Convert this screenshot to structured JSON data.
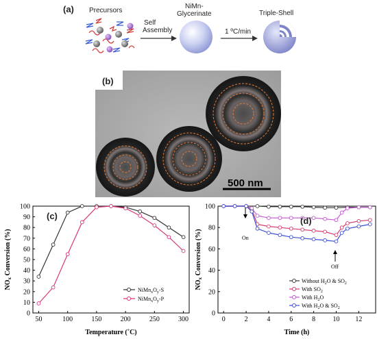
{
  "panel_a": {
    "label": "(a)",
    "precursors": "Precursors",
    "step1": "Self\nAssembly",
    "product1": "NiMn-\nGlycerinate",
    "step2": "1 ºC/min",
    "product2": "Triple-Shell"
  },
  "panel_b": {
    "label": "(b)",
    "scale_bar": "500 nm"
  },
  "colors": {
    "nimn_s": "#333333",
    "nimn_p": "#d9347a",
    "without": "#3a3a3a",
    "so2": "#d33b6a",
    "h2o": "#c455d4",
    "h2o_so2": "#3c4fd4"
  },
  "chart_data": [
    {
      "type": "line",
      "panel": "(c)",
      "xlabel": "Temperature (˚C)",
      "ylabel": "NOx Conversion (%)",
      "xlim": [
        40,
        310
      ],
      "ylim": [
        0,
        100
      ],
      "xticks": [
        50,
        100,
        150,
        200,
        250,
        300
      ],
      "yticks": [
        0,
        10,
        20,
        30,
        40,
        50,
        60,
        70,
        80,
        90,
        100
      ],
      "legend": "bottom-right",
      "series": [
        {
          "name": "NiMnxOy-S",
          "x": [
            50,
            75,
            100,
            125,
            150,
            175,
            200,
            225,
            250,
            275,
            300
          ],
          "y": [
            34,
            64,
            94,
            100,
            100,
            100,
            99,
            95,
            89,
            80,
            71
          ]
        },
        {
          "name": "NiMnxOy-P",
          "x": [
            50,
            75,
            100,
            125,
            150,
            175,
            200,
            225,
            250,
            275,
            300
          ],
          "y": [
            9,
            24,
            55,
            85,
            99,
            100,
            98,
            91,
            82,
            71,
            58
          ]
        }
      ]
    },
    {
      "type": "line",
      "panel": "(d)",
      "xlabel": "Time (h)",
      "ylabel": "NOx Conversion (%)",
      "xlim": [
        -0.5,
        13.5
      ],
      "ylim": [
        0,
        100
      ],
      "xticks": [
        0,
        2,
        4,
        6,
        8,
        10,
        12
      ],
      "yticks": [
        0,
        20,
        40,
        60,
        80,
        100
      ],
      "legend": "bottom-right",
      "annotations": [
        {
          "text": "On",
          "x": 2,
          "y": 80
        },
        {
          "text": "Off",
          "x": 10,
          "y": 57
        }
      ],
      "series": [
        {
          "name": "Without H2O & SO2",
          "x": [
            0,
            1,
            2,
            3,
            4,
            5,
            6,
            7,
            8,
            9,
            10,
            11,
            12,
            13
          ],
          "y": [
            100,
            100,
            100,
            100,
            99.5,
            99.5,
            99.5,
            99.5,
            99,
            98.5,
            98.5,
            99,
            99,
            99
          ]
        },
        {
          "name": "With SO2",
          "x": [
            0,
            1,
            2,
            2.5,
            3,
            4,
            5,
            6,
            7,
            8,
            9,
            10,
            10.5,
            11,
            12,
            13
          ],
          "y": [
            100,
            100,
            100,
            97,
            83,
            81,
            80,
            79,
            78,
            77,
            76,
            73,
            80,
            84,
            86,
            87
          ]
        },
        {
          "name": "With H2O",
          "x": [
            0,
            1,
            2,
            2.5,
            3,
            4,
            5,
            6,
            7,
            8,
            9,
            10,
            10.5,
            11,
            12,
            13
          ],
          "y": [
            100,
            100,
            100,
            98,
            91,
            89,
            89,
            89,
            89,
            89,
            88,
            87,
            94,
            98,
            99,
            99
          ]
        },
        {
          "name": "With H2O & SO2",
          "x": [
            0,
            1,
            2,
            2.5,
            3,
            4,
            5,
            6,
            7,
            8,
            9,
            10,
            10.5,
            11,
            12,
            13
          ],
          "y": [
            100,
            100,
            100,
            95,
            79,
            75,
            73,
            71,
            70,
            69,
            68,
            67,
            75,
            79,
            81,
            83
          ]
        }
      ]
    }
  ]
}
